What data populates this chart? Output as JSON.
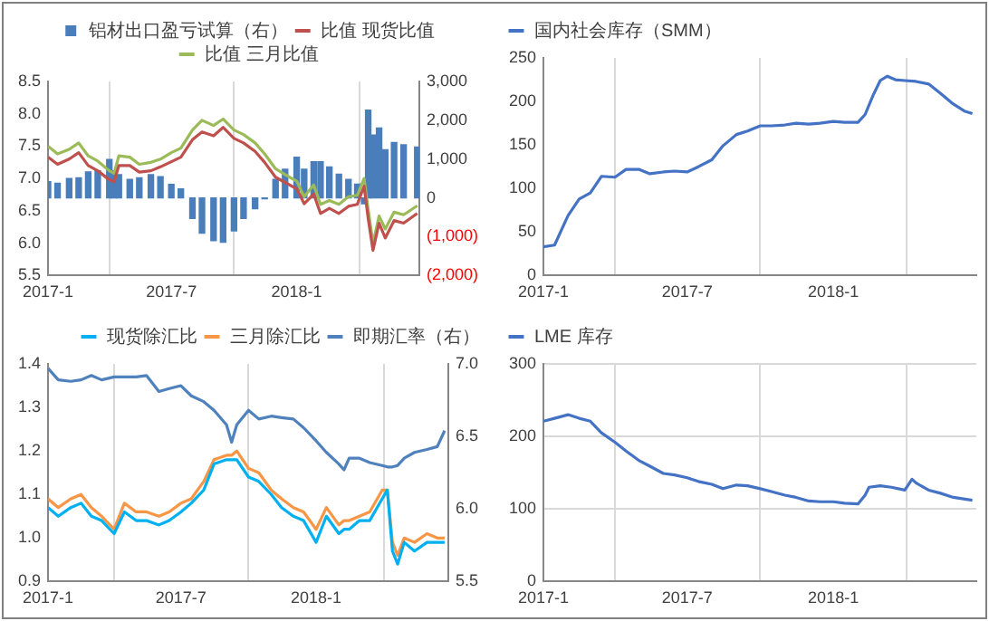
{
  "chart_data": [
    {
      "type": "line",
      "x": [
        "2017-01-01",
        "2017-01-15",
        "2017-02-01",
        "2017-02-15",
        "2017-03-01",
        "2017-03-15",
        "2017-04-01",
        "2017-04-08",
        "2017-04-15",
        "2017-05-01",
        "2017-05-15",
        "2017-06-01",
        "2017-06-15",
        "2017-07-01",
        "2017-07-15",
        "2017-08-01",
        "2017-08-15",
        "2017-09-01",
        "2017-09-15",
        "2017-10-01",
        "2017-10-15",
        "2017-11-01",
        "2017-11-15",
        "2017-12-01",
        "2017-12-15",
        "2018-01-01",
        "2018-01-12",
        "2018-01-26",
        "2018-02-05",
        "2018-02-18",
        "2018-03-04",
        "2018-03-18",
        "2018-03-31",
        "2018-04-10",
        "2018-04-16",
        "2018-04-23",
        "2018-05-02",
        "2018-05-11",
        "2018-05-24",
        "2018-06-07",
        "2018-06-27"
      ],
      "series": [
        {
          "name": "铝材出口盈亏试算（右）",
          "type": "bar",
          "axis": "y2",
          "color": "#4a7ebb",
          "values": [
            420,
            380,
            500,
            520,
            670,
            700,
            990,
            700,
            600,
            480,
            520,
            600,
            550,
            350,
            230,
            -530,
            -910,
            -1100,
            -1140,
            -850,
            -530,
            -280,
            -25,
            480,
            740,
            1050,
            740,
            930,
            930,
            800,
            610,
            480,
            355,
            -150,
            2260,
            1620,
            1800,
            1240,
            1430,
            1370,
            1310
          ]
        },
        {
          "name": "比值 现货比值",
          "color": "#c0504d",
          "values": [
            7.33,
            7.22,
            7.3,
            7.4,
            7.2,
            7.12,
            6.98,
            6.95,
            7.2,
            7.2,
            7.1,
            7.12,
            7.18,
            7.26,
            7.33,
            7.6,
            7.72,
            7.66,
            7.79,
            7.62,
            7.55,
            7.42,
            7.25,
            7.02,
            6.94,
            6.84,
            6.61,
            6.76,
            6.46,
            6.54,
            6.46,
            6.57,
            6.6,
            6.88,
            6.38,
            5.89,
            6.31,
            6.08,
            6.35,
            6.31,
            6.46
          ]
        },
        {
          "name": "比值 三月比值",
          "color": "#9bbb59",
          "values": [
            7.5,
            7.38,
            7.45,
            7.55,
            7.35,
            7.27,
            7.12,
            7.08,
            7.35,
            7.33,
            7.22,
            7.25,
            7.3,
            7.4,
            7.47,
            7.75,
            7.9,
            7.82,
            7.92,
            7.75,
            7.68,
            7.55,
            7.38,
            7.15,
            7.06,
            6.96,
            6.72,
            6.9,
            6.6,
            6.66,
            6.6,
            6.72,
            6.74,
            7.0,
            6.52,
            6.0,
            6.42,
            6.22,
            6.48,
            6.44,
            6.58
          ]
        }
      ],
      "xlim": [
        "2017-01-01",
        "2018-06-30"
      ],
      "xticks": [
        {
          "value": "2017-01-01",
          "label": "2017-1"
        },
        {
          "value": "2017-07-01",
          "label": "2017-7"
        },
        {
          "value": "2018-01-01",
          "label": "2018-1"
        }
      ],
      "ylim": [
        5.5,
        8.5
      ],
      "yticks": [
        5.5,
        {
          "value": 6,
          "label": "6.0"
        },
        6.5,
        {
          "value": 7,
          "label": "7.0"
        },
        7.5,
        {
          "value": 8,
          "label": "8.0"
        },
        8.5
      ],
      "y2lim": [
        -2000,
        3000
      ],
      "y2ticks": [
        {
          "value": -2000,
          "label": "(2,000)"
        },
        {
          "value": -1000,
          "label": "(1,000)"
        },
        0,
        {
          "value": 1000,
          "label": "1,000"
        },
        {
          "value": 2000,
          "label": "2,000"
        },
        {
          "value": 3000,
          "label": "3,000"
        }
      ],
      "grid": "x",
      "legend": "top",
      "marker": "none"
    },
    {
      "type": "line",
      "x": [
        "2017-01-01",
        "2017-01-15",
        "2017-02-01",
        "2017-02-15",
        "2017-03-01",
        "2017-03-15",
        "2017-04-01",
        "2017-04-15",
        "2017-05-01",
        "2017-05-15",
        "2017-06-01",
        "2017-06-15",
        "2017-07-01",
        "2017-07-15",
        "2017-08-01",
        "2017-08-15",
        "2017-09-01",
        "2017-09-15",
        "2017-10-01",
        "2017-10-15",
        "2017-11-01",
        "2017-11-15",
        "2017-12-01",
        "2017-12-15",
        "2018-01-01",
        "2018-01-15",
        "2018-02-01",
        "2018-02-10",
        "2018-02-20",
        "2018-03-01",
        "2018-03-10",
        "2018-03-20",
        "2018-04-01",
        "2018-04-15",
        "2018-05-01",
        "2018-05-15",
        "2018-06-01",
        "2018-06-15",
        "2018-06-25"
      ],
      "series": [
        {
          "name": "国内社会库存（SMM）",
          "color": "#4472c4",
          "values": [
            33,
            35,
            69,
            88,
            95,
            114,
            113,
            122,
            122,
            117,
            119,
            120,
            119,
            125,
            133,
            149,
            162,
            166,
            172,
            172,
            173,
            175,
            174,
            175,
            177,
            176,
            176,
            185,
            207,
            224,
            229,
            225,
            224,
            223,
            220,
            210,
            197,
            189,
            186
          ]
        }
      ],
      "xlim": [
        "2017-01-01",
        "2018-06-30"
      ],
      "xticks": [
        {
          "value": "2017-01-01",
          "label": "2017-1"
        },
        {
          "value": "2017-07-01",
          "label": "2017-7"
        },
        {
          "value": "2018-01-01",
          "label": "2018-1"
        }
      ],
      "ylim": [
        0,
        250
      ],
      "yticks": [
        0,
        50,
        100,
        150,
        200,
        250
      ],
      "grid": "x",
      "legend": "top left",
      "marker": "none"
    },
    {
      "type": "line",
      "x": [
        "2017-01-01",
        "2017-01-15",
        "2017-02-01",
        "2017-02-15",
        "2017-03-01",
        "2017-03-15",
        "2017-04-01",
        "2017-04-15",
        "2017-05-01",
        "2017-05-15",
        "2017-06-01",
        "2017-06-15",
        "2017-07-01",
        "2017-07-15",
        "2017-08-01",
        "2017-08-15",
        "2017-09-01",
        "2017-09-08",
        "2017-09-15",
        "2017-10-01",
        "2017-10-15",
        "2017-11-01",
        "2017-11-15",
        "2017-12-01",
        "2017-12-15",
        "2018-01-01",
        "2018-01-15",
        "2018-02-01",
        "2018-02-08",
        "2018-02-15",
        "2018-03-01",
        "2018-03-15",
        "2018-04-01",
        "2018-04-08",
        "2018-04-15",
        "2018-04-22",
        "2018-05-01",
        "2018-05-15",
        "2018-06-01",
        "2018-06-15",
        "2018-06-25"
      ],
      "series": [
        {
          "name": "现货除汇比",
          "color": "#00b0f0",
          "values": [
            1.07,
            1.05,
            1.07,
            1.08,
            1.05,
            1.04,
            1.01,
            1.06,
            1.04,
            1.04,
            1.03,
            1.04,
            1.06,
            1.08,
            1.11,
            1.17,
            1.18,
            1.18,
            1.18,
            1.14,
            1.13,
            1.1,
            1.07,
            1.05,
            1.04,
            0.99,
            1.05,
            1.01,
            1.02,
            1.02,
            1.04,
            1.04,
            1.09,
            1.11,
            0.97,
            0.94,
            0.99,
            0.97,
            0.99,
            0.99,
            0.99
          ]
        },
        {
          "name": "三月除汇比",
          "color": "#f79646",
          "values": [
            1.09,
            1.07,
            1.09,
            1.1,
            1.07,
            1.05,
            1.02,
            1.08,
            1.06,
            1.06,
            1.05,
            1.06,
            1.08,
            1.09,
            1.13,
            1.18,
            1.19,
            1.19,
            1.2,
            1.16,
            1.15,
            1.11,
            1.09,
            1.07,
            1.06,
            1.02,
            1.07,
            1.03,
            1.04,
            1.04,
            1.05,
            1.06,
            1.11,
            1.11,
            0.99,
            0.96,
            1.0,
            0.99,
            1.01,
            1.0,
            1.0
          ]
        },
        {
          "name": "即期汇率（右）",
          "axis": "y2",
          "color": "#4f81bd",
          "values": [
            6.97,
            6.89,
            6.88,
            6.89,
            6.92,
            6.89,
            6.91,
            6.91,
            6.91,
            6.92,
            6.81,
            6.83,
            6.85,
            6.78,
            6.74,
            6.68,
            6.58,
            6.46,
            6.58,
            6.68,
            6.62,
            6.64,
            6.63,
            6.62,
            6.56,
            6.47,
            6.39,
            6.31,
            6.27,
            6.35,
            6.35,
            6.32,
            6.3,
            6.29,
            6.29,
            6.3,
            6.35,
            6.39,
            6.41,
            6.43,
            6.54
          ]
        }
      ],
      "xlim": [
        "2017-01-01",
        "2018-06-30"
      ],
      "xticks": [
        {
          "value": "2017-01-01",
          "label": "2017-1"
        },
        {
          "value": "2017-07-01",
          "label": "2017-7"
        },
        {
          "value": "2018-01-01",
          "label": "2018-1"
        }
      ],
      "ylim": [
        0.9,
        1.4
      ],
      "yticks": [
        0.9,
        {
          "value": 1,
          "label": "1.0"
        },
        1.1,
        1.2,
        1.3,
        1.4
      ],
      "y2lim": [
        5.5,
        7
      ],
      "y2ticks": [
        5.5,
        {
          "value": 6,
          "label": "6.0"
        },
        6.5,
        {
          "value": 7,
          "label": "7.0"
        }
      ],
      "grid": "x",
      "legend": "top right",
      "marker": "none"
    },
    {
      "type": "line",
      "x": [
        "2017-01-01",
        "2017-01-15",
        "2017-02-01",
        "2017-02-15",
        "2017-03-01",
        "2017-03-15",
        "2017-04-01",
        "2017-04-15",
        "2017-05-01",
        "2017-05-15",
        "2017-06-01",
        "2017-06-15",
        "2017-07-01",
        "2017-07-15",
        "2017-08-01",
        "2017-08-15",
        "2017-09-01",
        "2017-09-15",
        "2017-10-01",
        "2017-10-15",
        "2017-11-01",
        "2017-11-15",
        "2017-12-01",
        "2017-12-15",
        "2018-01-01",
        "2018-01-15",
        "2018-02-01",
        "2018-02-10",
        "2018-02-15",
        "2018-03-01",
        "2018-03-15",
        "2018-04-01",
        "2018-04-10",
        "2018-04-15",
        "2018-05-01",
        "2018-05-15",
        "2018-06-01",
        "2018-06-25"
      ],
      "series": [
        {
          "name": "LME 库存",
          "color": "#4472c4",
          "values": [
            221,
            225,
            230,
            225,
            221,
            205,
            192,
            180,
            167,
            159,
            149,
            147,
            143,
            138,
            134,
            128,
            133,
            132,
            128,
            124,
            119,
            116,
            111,
            110,
            110,
            108,
            107,
            119,
            130,
            132,
            130,
            126,
            141,
            136,
            126,
            122,
            116,
            112
          ]
        }
      ],
      "xlim": [
        "2017-01-01",
        "2018-06-30"
      ],
      "xticks": [
        {
          "value": "2017-01-01",
          "label": "2017-1"
        },
        {
          "value": "2017-07-01",
          "label": "2017-7"
        },
        {
          "value": "2018-01-01",
          "label": "2018-1"
        }
      ],
      "ylim": [
        0,
        300
      ],
      "yticks": [
        0,
        100,
        200,
        300
      ],
      "grid": true,
      "legend": "top left",
      "marker": "none"
    }
  ]
}
